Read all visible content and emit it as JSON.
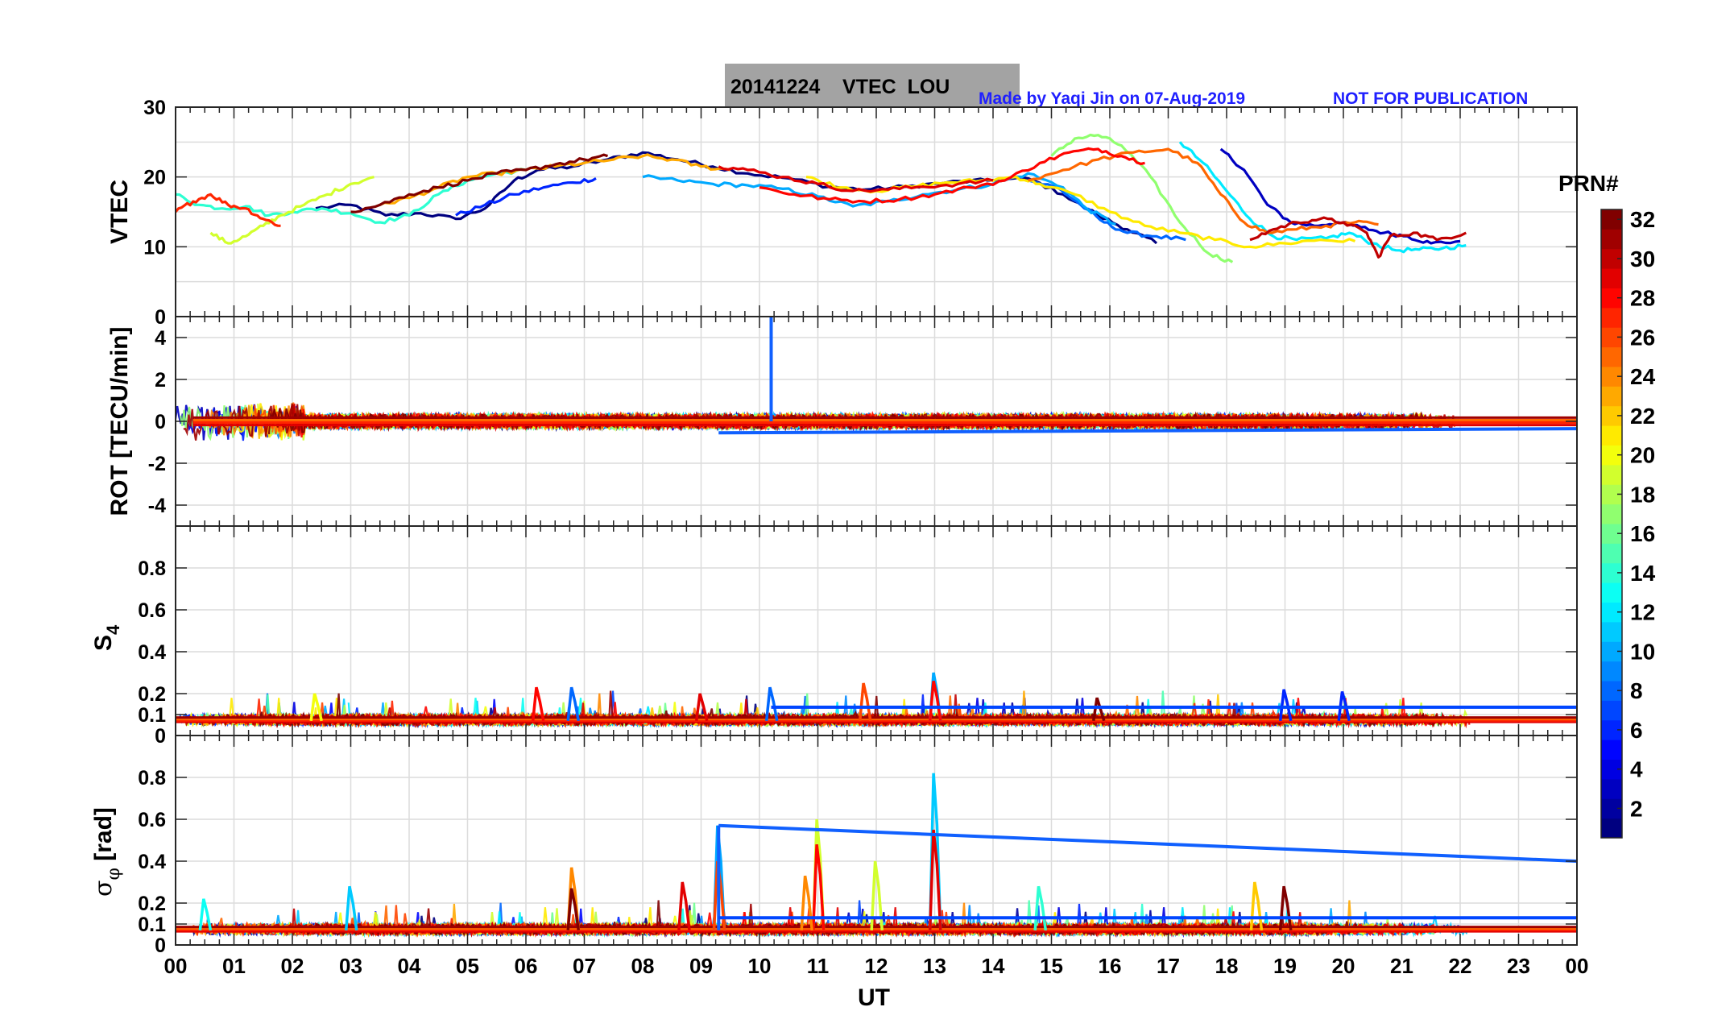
{
  "header": {
    "title": "20141224    VTEC  LOU",
    "credit": "Made by Yaqi Jin on 07-Aug-2019",
    "notice": "NOT FOR PUBLICATION"
  },
  "colors": {
    "title_box": "#a3a3a3",
    "credit_text": "#1f1fff",
    "grid": "#dcdcdc",
    "axis": "#262626",
    "spike_blue": "#1060ff"
  },
  "colorbar": {
    "label": "PRN#",
    "range": [
      1,
      32
    ],
    "ticks": [
      "2",
      "4",
      "6",
      "8",
      "10",
      "12",
      "14",
      "16",
      "18",
      "20",
      "22",
      "24",
      "26",
      "28",
      "30",
      "32"
    ]
  },
  "chart_data": [
    {
      "type": "line",
      "id": "vtec",
      "ylabel": "VTEC",
      "ylim": [
        0,
        30
      ],
      "yticks": [
        0,
        10,
        20,
        30
      ],
      "xlim": [
        0,
        24
      ],
      "series": [
        {
          "prn": 1,
          "x": [
            2.4,
            3.0,
            3.6,
            4.2,
            4.8,
            5.3,
            5.8,
            6.2,
            6.8,
            7.4,
            8.0,
            8.6,
            9.2,
            9.8,
            10.5,
            11.2,
            11.8,
            12.5,
            13.2,
            13.9,
            14.6,
            15.2,
            15.8,
            16.3,
            16.8
          ],
          "y": [
            15.5,
            16.0,
            14.5,
            14.8,
            14.0,
            15.5,
            19.5,
            21.0,
            21.5,
            22.5,
            23.5,
            22.5,
            21.5,
            20.5,
            19.8,
            18.6,
            18.2,
            18.6,
            19.2,
            19.5,
            19.8,
            17.5,
            14.5,
            12.5,
            10.5
          ]
        },
        {
          "prn": 3,
          "x": [
            17.9,
            18.3,
            18.7,
            19.1,
            19.5,
            19.9,
            20.3,
            20.7,
            21.1,
            21.5,
            22.0
          ],
          "y": [
            24.0,
            21.0,
            16.0,
            13.5,
            13.0,
            13.5,
            12.8,
            12.0,
            11.5,
            10.5,
            10.8
          ]
        },
        {
          "prn": 6,
          "x": [
            4.8,
            5.3,
            5.8,
            6.3,
            6.8,
            7.2
          ],
          "y": [
            14.5,
            16.0,
            17.5,
            18.5,
            19.2,
            19.8
          ]
        },
        {
          "prn": 8,
          "x": [
            14.6,
            15.1,
            15.5,
            15.9,
            16.3,
            16.8,
            17.3
          ],
          "y": [
            19.5,
            18.5,
            16.0,
            13.5,
            12.0,
            11.5,
            11.0
          ]
        },
        {
          "prn": 10,
          "x": [
            8.0,
            8.6,
            9.2,
            9.8,
            10.4,
            11.0,
            11.6,
            12.2,
            12.8,
            13.4,
            14.0,
            14.6,
            15.2,
            15.6,
            16.1
          ],
          "y": [
            20.0,
            19.5,
            19.0,
            18.8,
            18.3,
            17.2,
            15.8,
            16.5,
            17.5,
            18.2,
            19.0,
            20.5,
            18.5,
            15.5,
            13.2
          ]
        },
        {
          "prn": 12,
          "x": [
            17.2,
            17.6,
            18.0,
            18.4,
            18.8,
            19.2,
            19.7,
            20.1,
            20.5,
            20.9,
            21.3,
            21.7,
            22.1
          ],
          "y": [
            25.0,
            22.0,
            18.0,
            14.0,
            11.5,
            11.0,
            11.2,
            12.0,
            10.5,
            9.5,
            9.6,
            9.8,
            10.2
          ]
        },
        {
          "prn": 14,
          "x": [
            0.0,
            0.4,
            0.8,
            1.2,
            1.6,
            2.0,
            2.5,
            3.0,
            3.5,
            4.0,
            4.5,
            5.0,
            5.5,
            6.0
          ],
          "y": [
            17.5,
            16.0,
            15.5,
            15.8,
            14.5,
            15.0,
            15.5,
            14.8,
            13.5,
            14.5,
            17.5,
            19.5,
            20.5,
            21.0
          ]
        },
        {
          "prn": 17,
          "x": [
            15.0,
            15.4,
            15.8,
            16.2,
            16.7,
            17.2,
            17.7,
            18.1
          ],
          "y": [
            23.0,
            25.5,
            26.0,
            24.5,
            20.0,
            13.5,
            9.0,
            7.8
          ]
        },
        {
          "prn": 19,
          "x": [
            0.6,
            0.9,
            1.2,
            1.5,
            1.8,
            2.2,
            2.6,
            3.0,
            3.4
          ],
          "y": [
            12.0,
            10.5,
            11.5,
            13.0,
            14.5,
            16.0,
            17.5,
            19.0,
            20.0
          ]
        },
        {
          "prn": 21,
          "x": [
            10.8,
            11.4,
            12.0,
            12.6,
            13.2,
            13.8,
            14.4,
            14.8,
            15.4,
            16.0,
            16.6,
            17.2,
            17.8,
            18.4,
            19.0,
            19.6,
            20.2
          ],
          "y": [
            20.0,
            18.5,
            18.0,
            18.6,
            19.2,
            19.5,
            20.0,
            19.0,
            17.5,
            15.0,
            13.0,
            12.0,
            11.0,
            10.0,
            10.5,
            11.0,
            10.8
          ]
        },
        {
          "prn": 23,
          "x": [
            3.5,
            4.0,
            4.5,
            5.0,
            5.5,
            6.0,
            6.5,
            7.0,
            7.5,
            8.0,
            8.5,
            9.0,
            9.5
          ],
          "y": [
            16.0,
            17.0,
            18.5,
            20.0,
            20.5,
            21.0,
            21.5,
            22.0,
            22.5,
            23.0,
            22.5,
            21.5,
            21.0
          ]
        },
        {
          "prn": 25,
          "x": [
            14.6,
            15.2,
            15.8,
            16.4,
            17.0,
            17.5,
            17.9,
            18.3,
            18.7,
            19.2,
            19.7,
            20.2,
            20.6
          ],
          "y": [
            19.5,
            21.0,
            22.5,
            23.5,
            24.0,
            22.0,
            17.5,
            13.5,
            12.0,
            12.5,
            13.0,
            13.5,
            13.2
          ]
        },
        {
          "prn": 27,
          "x": [
            0.0,
            0.3,
            0.6,
            0.9,
            1.2,
            1.5,
            1.8
          ],
          "y": [
            15.0,
            16.5,
            17.5,
            16.0,
            15.5,
            14.0,
            13.0
          ]
        },
        {
          "prn": 28,
          "x": [
            10.0,
            10.6,
            11.2,
            11.8,
            12.4,
            13.0,
            13.6,
            14.2,
            14.8,
            15.3,
            15.8,
            16.2,
            16.6
          ],
          "y": [
            18.5,
            17.5,
            16.8,
            16.5,
            16.8,
            17.5,
            18.5,
            19.5,
            22.0,
            23.5,
            24.0,
            23.0,
            22.0
          ]
        },
        {
          "prn": 29,
          "x": [
            9.3,
            9.8,
            10.4,
            11.0,
            11.6,
            12.2,
            12.8,
            13.4,
            14.0
          ],
          "y": [
            21.5,
            21.0,
            20.0,
            19.0,
            18.0,
            18.2,
            18.6,
            19.0,
            19.5
          ]
        },
        {
          "prn": 30,
          "x": [
            18.4,
            18.8,
            19.2,
            19.6,
            20.0,
            20.4,
            20.6,
            20.8,
            21.2,
            21.6,
            22.1
          ],
          "y": [
            11.0,
            12.5,
            13.5,
            14.0,
            13.5,
            12.0,
            8.5,
            11.5,
            12.0,
            11.0,
            12.0
          ]
        },
        {
          "prn": 32,
          "x": [
            3.0,
            3.5,
            4.0,
            4.5,
            5.0,
            5.5,
            6.0,
            6.5,
            7.0,
            7.4
          ],
          "y": [
            15.0,
            16.0,
            17.5,
            18.5,
            19.5,
            20.5,
            21.0,
            21.8,
            22.5,
            23.0
          ]
        }
      ]
    },
    {
      "type": "line",
      "id": "rot",
      "ylabel": "ROT [TECU/min]",
      "ylim": [
        -5,
        5
      ],
      "yticks": [
        -4,
        -2,
        0,
        2,
        4
      ],
      "xlim": [
        0,
        24
      ],
      "annotations": [
        {
          "kind": "spike",
          "x": 10.2,
          "y_from": 0,
          "y_to": 5.0,
          "prn": 8
        },
        {
          "kind": "drift",
          "x": [
            9.3,
            24.0
          ],
          "y": [
            -0.55,
            -0.35
          ],
          "prn": 8
        }
      ]
    },
    {
      "type": "line",
      "id": "s4",
      "ylabel": "S4",
      "ylim": [
        0,
        1.0
      ],
      "yticks": [
        0,
        0.1,
        0.2,
        0.4,
        0.6,
        0.8
      ],
      "xlim": [
        0,
        24
      ],
      "annotations": [
        {
          "kind": "level",
          "x": [
            10.2,
            24.0
          ],
          "y": [
            0.135,
            0.135
          ],
          "prn": 7
        }
      ]
    },
    {
      "type": "line",
      "id": "sigma_phi",
      "ylabel": "σφ [rad]",
      "ylim": [
        0,
        1.0
      ],
      "yticks": [
        0,
        0.1,
        0.2,
        0.4,
        0.6,
        0.8
      ],
      "xlim": [
        0,
        24
      ],
      "annotations": [
        {
          "kind": "drift",
          "x": [
            9.3,
            24.0
          ],
          "y": [
            0.57,
            0.4
          ],
          "prn": 8
        },
        {
          "kind": "level",
          "x": [
            9.3,
            24.0
          ],
          "y": [
            0.13,
            0.13
          ],
          "prn": 7
        }
      ]
    }
  ],
  "xaxis": {
    "label": "UT",
    "tick_labels": [
      "00",
      "01",
      "02",
      "03",
      "04",
      "05",
      "06",
      "07",
      "08",
      "09",
      "10",
      "11",
      "12",
      "13",
      "14",
      "15",
      "16",
      "17",
      "18",
      "19",
      "20",
      "21",
      "22",
      "23",
      "00"
    ]
  }
}
